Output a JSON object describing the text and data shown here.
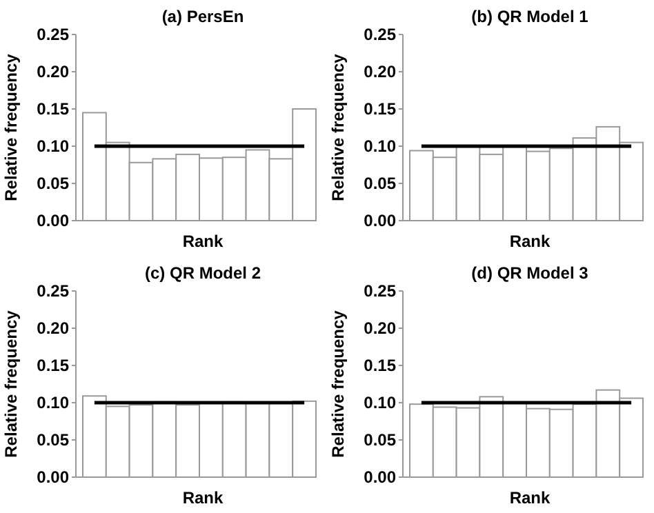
{
  "chart_data": [
    {
      "type": "bar",
      "title": "(a) PersEn",
      "xlabel": "Rank",
      "ylabel": "Relative frequency",
      "categories": [
        null,
        null,
        null,
        null,
        null,
        null,
        null,
        null,
        null,
        null
      ],
      "values": [
        0.145,
        0.105,
        0.078,
        0.083,
        0.089,
        0.084,
        0.085,
        0.095,
        0.083,
        0.15
      ],
      "color": "#ffffff",
      "ylim": [
        0,
        0.25
      ],
      "yticks": [
        {
          "value": 0,
          "label": "0.00"
        },
        {
          "value": 0.05,
          "label": "0.05"
        },
        {
          "value": 0.1,
          "label": "0.10"
        },
        {
          "value": 0.15,
          "label": "0.15"
        },
        {
          "value": 0.2,
          "label": "0.20"
        },
        {
          "value": 0.25,
          "label": "0.25"
        }
      ],
      "tick_labels": "y",
      "ref_lines": [
        {
          "axis": "y",
          "value": 0.1,
          "color": "#000000"
        }
      ]
    },
    {
      "type": "bar",
      "title": "(b) QR Model 1",
      "xlabel": "Rank",
      "ylabel": "Relative frequency",
      "categories": [
        null,
        null,
        null,
        null,
        null,
        null,
        null,
        null,
        null,
        null
      ],
      "values": [
        0.094,
        0.085,
        0.1,
        0.089,
        0.099,
        0.093,
        0.097,
        0.111,
        0.126,
        0.105
      ],
      "color": "#ffffff",
      "ylim": [
        0,
        0.25
      ],
      "yticks": [
        {
          "value": 0,
          "label": "0.00"
        },
        {
          "value": 0.05,
          "label": "0.05"
        },
        {
          "value": 0.1,
          "label": "0.10"
        },
        {
          "value": 0.15,
          "label": "0.15"
        },
        {
          "value": 0.2,
          "label": "0.20"
        },
        {
          "value": 0.25,
          "label": "0.25"
        }
      ],
      "tick_labels": "y",
      "ref_lines": [
        {
          "axis": "y",
          "value": 0.1,
          "color": "#000000"
        }
      ]
    },
    {
      "type": "bar",
      "title": "(c) QR Model 2",
      "xlabel": "Rank",
      "ylabel": "Relative frequency",
      "categories": [
        null,
        null,
        null,
        null,
        null,
        null,
        null,
        null,
        null,
        null
      ],
      "values": [
        0.109,
        0.095,
        0.097,
        0.101,
        0.097,
        0.1,
        0.101,
        0.099,
        0.1,
        0.102
      ],
      "color": "#ffffff",
      "ylim": [
        0,
        0.25
      ],
      "yticks": [
        {
          "value": 0,
          "label": "0.00"
        },
        {
          "value": 0.05,
          "label": "0.05"
        },
        {
          "value": 0.1,
          "label": "0.10"
        },
        {
          "value": 0.15,
          "label": "0.15"
        },
        {
          "value": 0.2,
          "label": "0.20"
        },
        {
          "value": 0.25,
          "label": "0.25"
        }
      ],
      "tick_labels": "y",
      "ref_lines": [
        {
          "axis": "y",
          "value": 0.1,
          "color": "#000000"
        }
      ]
    },
    {
      "type": "bar",
      "title": "(d) QR Model 3",
      "xlabel": "Rank",
      "ylabel": "Relative frequency",
      "categories": [
        null,
        null,
        null,
        null,
        null,
        null,
        null,
        null,
        null,
        null
      ],
      "values": [
        0.098,
        0.094,
        0.093,
        0.108,
        0.1,
        0.092,
        0.091,
        0.098,
        0.117,
        0.106
      ],
      "color": "#ffffff",
      "ylim": [
        0,
        0.25
      ],
      "yticks": [
        {
          "value": 0,
          "label": "0.00"
        },
        {
          "value": 0.05,
          "label": "0.05"
        },
        {
          "value": 0.1,
          "label": "0.10"
        },
        {
          "value": 0.15,
          "label": "0.15"
        },
        {
          "value": 0.2,
          "label": "0.20"
        },
        {
          "value": 0.25,
          "label": "0.25"
        }
      ],
      "tick_labels": "y",
      "ref_lines": [
        {
          "axis": "y",
          "value": 0.1,
          "color": "#000000"
        }
      ]
    }
  ]
}
